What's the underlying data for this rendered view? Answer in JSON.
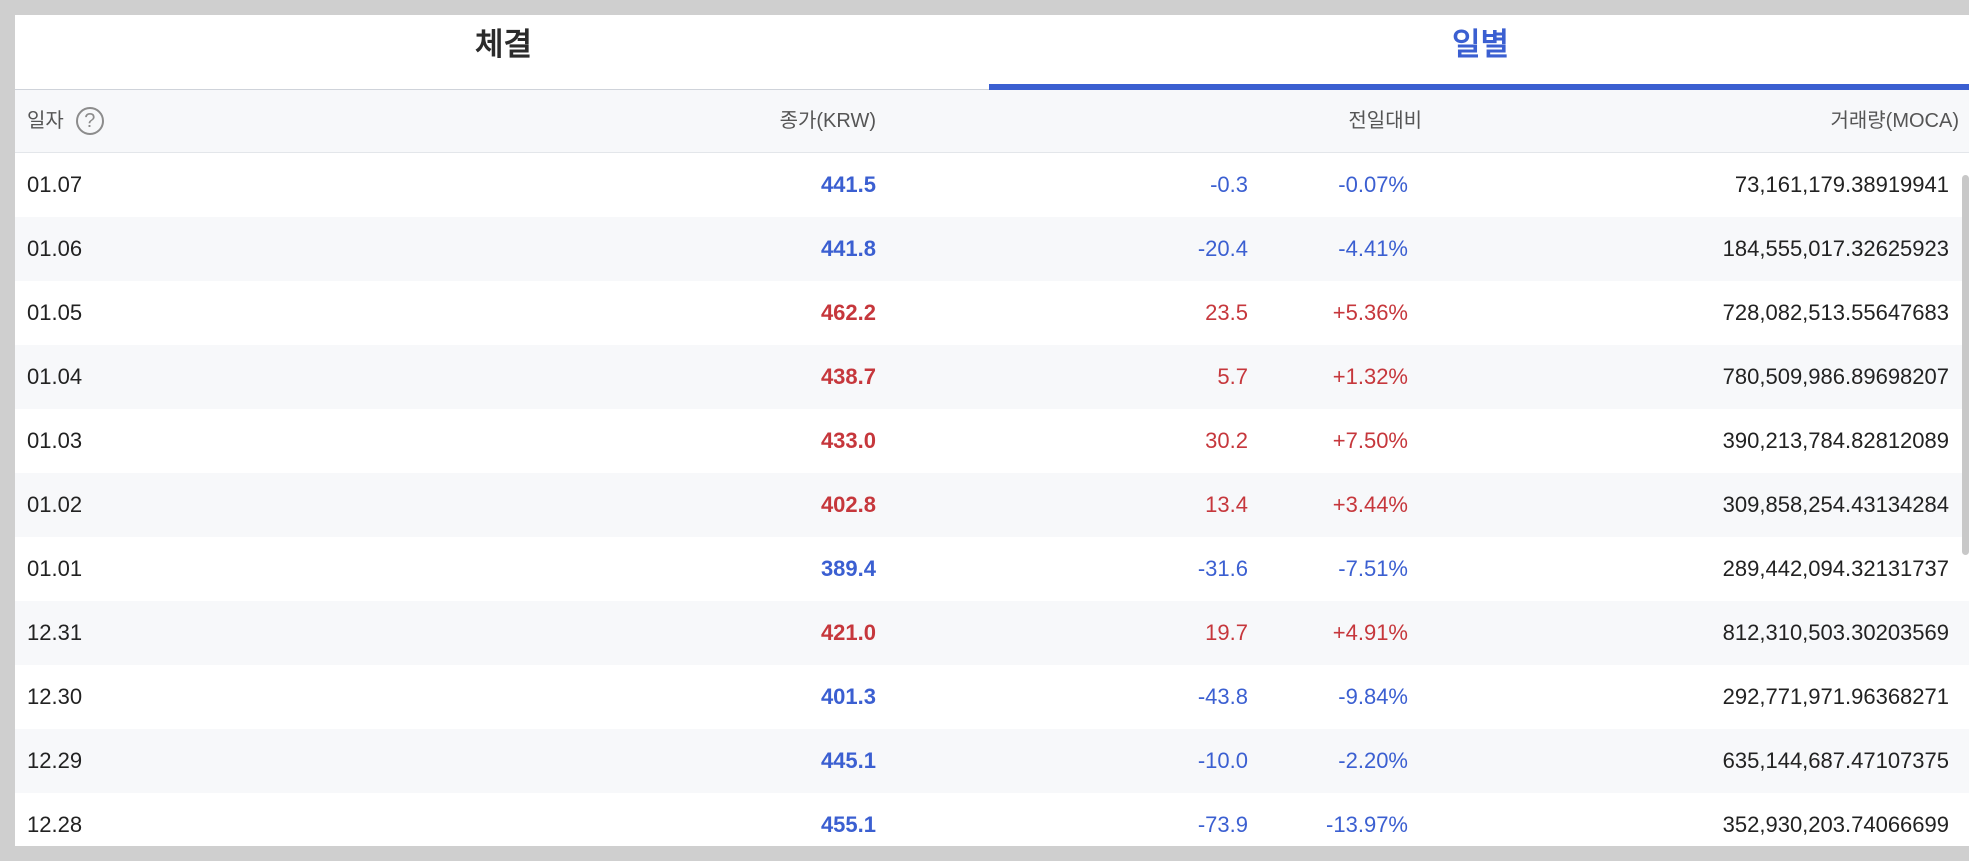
{
  "tabs": {
    "trades": "체결",
    "daily": "일별"
  },
  "header": {
    "date": "일자",
    "help": "?",
    "close": "종가(KRW)",
    "change": "전일대비",
    "volume": "거래량(MOCA)"
  },
  "colors": {
    "up": "#c6373c",
    "down": "#3b5fd1",
    "accent": "#3b5fd1"
  },
  "rows": [
    {
      "date": "01.07",
      "close": "441.5",
      "change": "-0.3",
      "pct": "-0.07%",
      "volume": "73,161,179.38919941",
      "dir": "down"
    },
    {
      "date": "01.06",
      "close": "441.8",
      "change": "-20.4",
      "pct": "-4.41%",
      "volume": "184,555,017.32625923",
      "dir": "down"
    },
    {
      "date": "01.05",
      "close": "462.2",
      "change": "23.5",
      "pct": "+5.36%",
      "volume": "728,082,513.55647683",
      "dir": "up"
    },
    {
      "date": "01.04",
      "close": "438.7",
      "change": "5.7",
      "pct": "+1.32%",
      "volume": "780,509,986.89698207",
      "dir": "up"
    },
    {
      "date": "01.03",
      "close": "433.0",
      "change": "30.2",
      "pct": "+7.50%",
      "volume": "390,213,784.82812089",
      "dir": "up"
    },
    {
      "date": "01.02",
      "close": "402.8",
      "change": "13.4",
      "pct": "+3.44%",
      "volume": "309,858,254.43134284",
      "dir": "up"
    },
    {
      "date": "01.01",
      "close": "389.4",
      "change": "-31.6",
      "pct": "-7.51%",
      "volume": "289,442,094.32131737",
      "dir": "down"
    },
    {
      "date": "12.31",
      "close": "421.0",
      "change": "19.7",
      "pct": "+4.91%",
      "volume": "812,310,503.30203569",
      "dir": "up"
    },
    {
      "date": "12.30",
      "close": "401.3",
      "change": "-43.8",
      "pct": "-9.84%",
      "volume": "292,771,971.96368271",
      "dir": "down"
    },
    {
      "date": "12.29",
      "close": "445.1",
      "change": "-10.0",
      "pct": "-2.20%",
      "volume": "635,144,687.47107375",
      "dir": "down"
    },
    {
      "date": "12.28",
      "close": "455.1",
      "change": "-73.9",
      "pct": "-13.97%",
      "volume": "352,930,203.74066699",
      "dir": "down"
    }
  ]
}
